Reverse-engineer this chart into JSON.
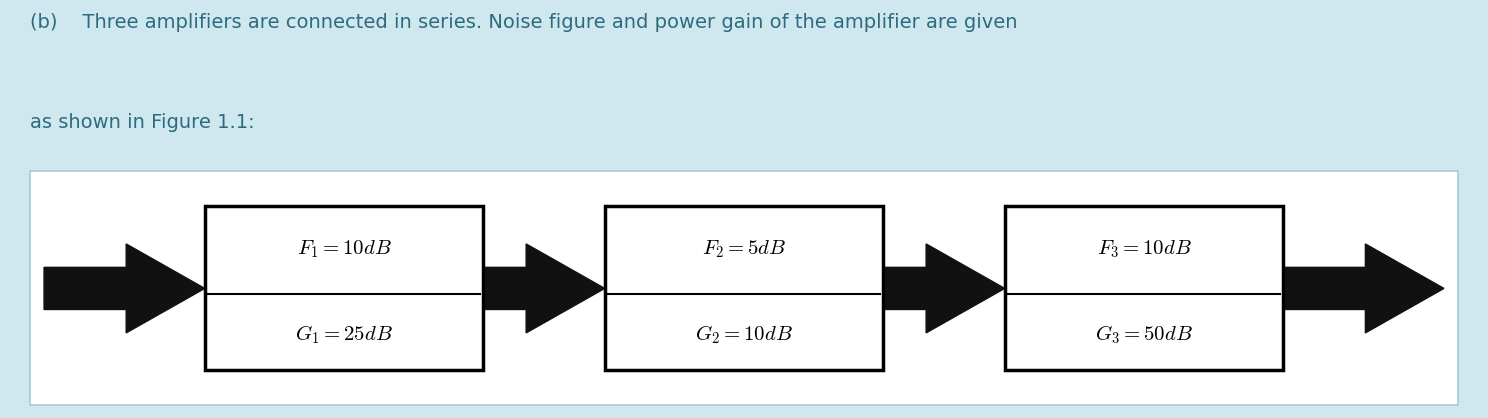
{
  "background_color": "#cfe8f0",
  "text_line1": "(b)    Three amplifiers are connected in series. Noise figure and power gain of the amplifier are given",
  "text_line2": "as shown in Figure 1.1:",
  "text_color": "#2e6b7e",
  "figure_bg": "#ffffff",
  "figure_border_color": "#aac8d8",
  "amplifiers": [
    {
      "F_label": "$F_1 = 10dB$",
      "G_label": "$G_1 = 25dB$"
    },
    {
      "F_label": "$F_2 = 5dB$",
      "G_label": "$G_2 = 10dB$"
    },
    {
      "F_label": "$F_3 = 10dB$",
      "G_label": "$G_3 = 50dB$"
    }
  ],
  "arrow_color": "#111111",
  "box_edge_color": "#000000",
  "box_face_color": "#ffffff",
  "font_size_text": 14,
  "font_size_label": 15
}
